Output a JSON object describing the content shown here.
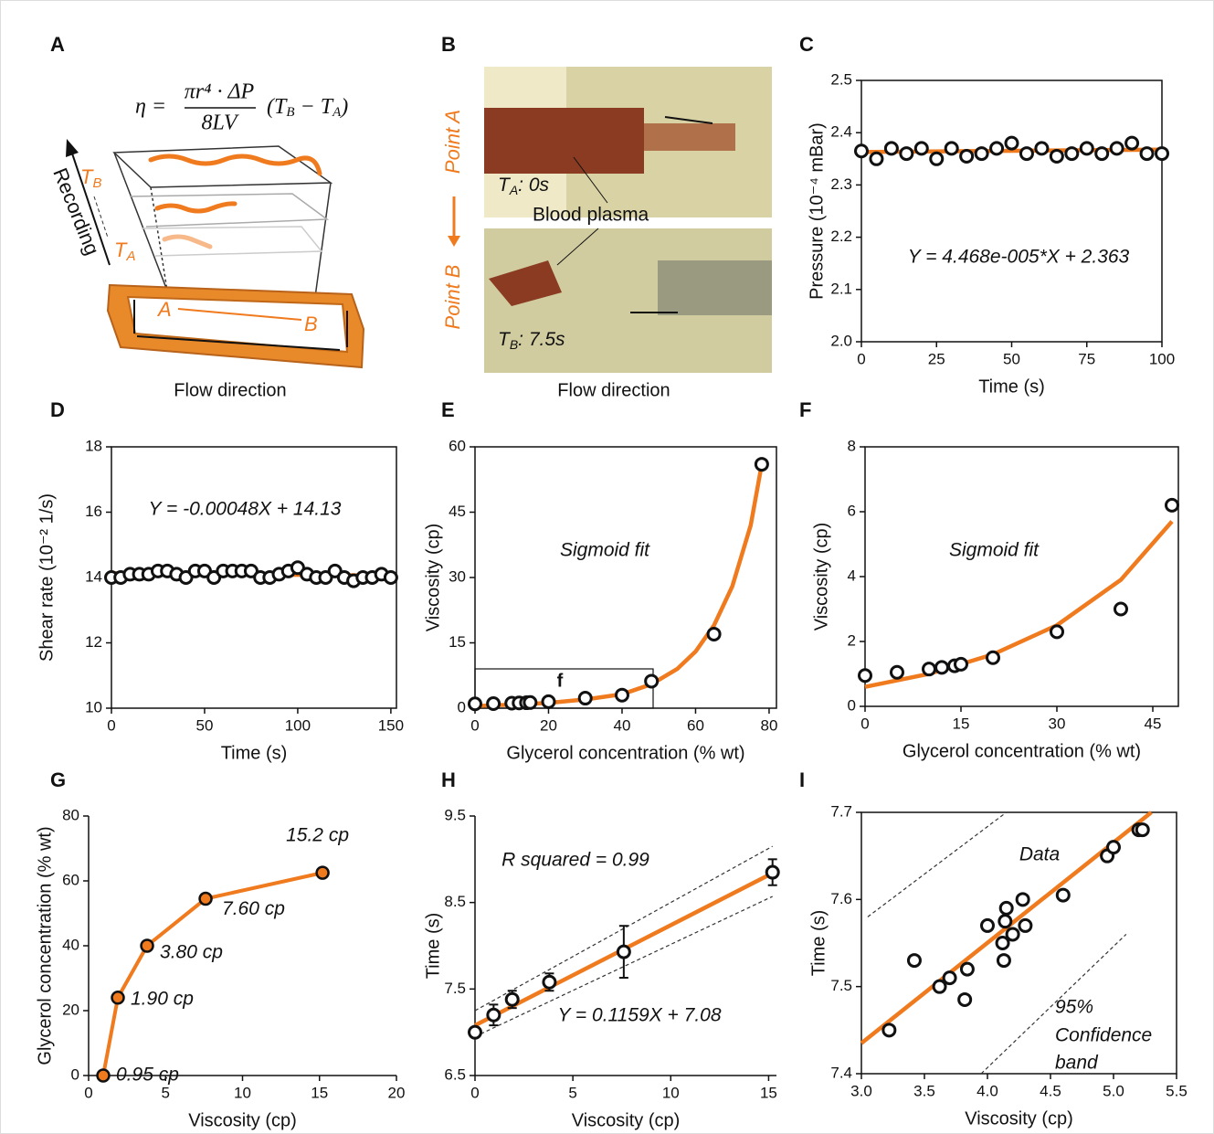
{
  "diagram_a": {
    "label": "A",
    "formula": {
      "lhs": "η =",
      "numerator": "πr⁴ · ΔP",
      "denominator": "8LV",
      "factor": [
        "(T",
        "B",
        " − T",
        "A",
        ")"
      ]
    },
    "recording": "Recording",
    "t_b": [
      "T",
      "B"
    ],
    "t_a": [
      "T",
      "A"
    ],
    "point_a": "A",
    "point_b": "B",
    "caption": "Flow direction"
  },
  "photo_b": {
    "label": "B",
    "point_a": "Point A",
    "point_b": "Point B",
    "t_a": [
      "T",
      "A",
      ": 0s"
    ],
    "plasma": "Blood plasma",
    "t_b": [
      "T",
      "B",
      ": 7.5s"
    ],
    "caption": "Flow direction"
  },
  "chart_data": [
    {
      "type": "scatter",
      "label": "C",
      "xlabel": "Time (s)",
      "ylabel": "Pressure (10⁻⁴ mBar)",
      "box": true,
      "fit_color": "#f07a1e",
      "x": [
        0,
        5,
        10,
        15,
        20,
        25,
        30,
        35,
        40,
        45,
        50,
        55,
        60,
        65,
        70,
        75,
        80,
        85,
        90,
        95,
        100
      ],
      "values": [
        2.365,
        2.35,
        2.37,
        2.36,
        2.37,
        2.35,
        2.37,
        2.355,
        2.36,
        2.37,
        2.38,
        2.36,
        2.37,
        2.355,
        2.36,
        2.37,
        2.36,
        2.37,
        2.38,
        2.36,
        2.36
      ],
      "fit": {
        "x": [
          0,
          100
        ],
        "y": [
          2.363,
          2.3675
        ]
      },
      "xlim": [
        0,
        100
      ],
      "xticks": [
        0,
        25,
        50,
        75,
        100
      ],
      "ylim": [
        2.0,
        2.5
      ],
      "yticks": [
        {
          "value": 2.0,
          "label": "2.0"
        },
        2.1,
        2.2,
        2.3,
        2.4,
        {
          "value": 2.5,
          "label": "2.5"
        }
      ],
      "annotations": [
        "Y = 4.468e-005*X + 2.363"
      ]
    },
    {
      "type": "scatter",
      "label": "D",
      "xlabel": "Time (s)",
      "ylabel": "Shear rate (10⁻² 1/s)",
      "box": true,
      "fit_color": "#f07a1e",
      "x": [
        0,
        5,
        10,
        15,
        20,
        25,
        30,
        35,
        40,
        45,
        50,
        55,
        60,
        65,
        70,
        75,
        80,
        85,
        90,
        95,
        100,
        105,
        110,
        115,
        120,
        125,
        130,
        135,
        140,
        145,
        150
      ],
      "values": [
        14.0,
        14.0,
        14.1,
        14.1,
        14.1,
        14.2,
        14.2,
        14.1,
        14.0,
        14.2,
        14.2,
        14.0,
        14.2,
        14.2,
        14.2,
        14.2,
        14.0,
        14.0,
        14.1,
        14.2,
        14.3,
        14.1,
        14.0,
        14.0,
        14.2,
        14.0,
        13.9,
        14.0,
        14.0,
        14.1,
        14.0
      ],
      "errors": [
        0.1,
        0.15,
        0.15,
        0.15,
        0.15,
        0.15,
        0.15,
        0.1,
        0.15,
        0.15,
        0.15,
        0.15,
        0.1,
        0.15,
        0.1,
        0.15,
        0.15,
        0.15,
        0.15,
        0.15,
        0.1,
        0.1,
        0.1,
        0.15,
        0.15,
        0.1,
        0.1,
        0.15,
        0.1,
        0.1,
        0.1
      ],
      "fit": {
        "x": [
          0,
          150
        ],
        "y": [
          14.13,
          14.058
        ]
      },
      "xlim": [
        0,
        153
      ],
      "xticks": [
        0,
        50,
        100,
        150
      ],
      "ylim": [
        10,
        18
      ],
      "yticks": [
        10,
        12,
        14,
        16,
        18
      ],
      "annotations": [
        "Y = -0.00048X + 14.13"
      ]
    },
    {
      "type": "scatter",
      "label": "E",
      "xlabel": "Glycerol concentration (% wt)",
      "ylabel": "Viscosity (cp)",
      "box": true,
      "fit_color": "#f07a1e",
      "x": [
        0,
        5,
        10,
        12,
        14,
        15,
        20,
        30,
        40,
        48,
        65,
        78
      ],
      "values": [
        1,
        1.05,
        1.15,
        1.2,
        1.25,
        1.3,
        1.5,
        2.3,
        3.0,
        6.2,
        17,
        56
      ],
      "fit": {
        "x": [
          0,
          10,
          20,
          30,
          40,
          48,
          55,
          60,
          65,
          70,
          75,
          78
        ],
        "y": [
          0.5,
          0.8,
          1.2,
          2,
          3.2,
          5.5,
          9,
          13,
          19,
          28,
          42,
          56
        ]
      },
      "xlim": [
        0,
        82
      ],
      "xticks": [
        0,
        20,
        40,
        60,
        80
      ],
      "ylim": [
        0,
        60
      ],
      "yticks": [
        0,
        15,
        30,
        45,
        60
      ],
      "annotations": [
        "Sigmoid fit"
      ],
      "inset_label": "f"
    },
    {
      "type": "scatter",
      "label": "F",
      "xlabel": "Glycerol concentration (% wt)",
      "ylabel": "Viscosity (cp)",
      "box": true,
      "fit_color": "#f07a1e",
      "x": [
        0,
        5,
        10,
        12,
        14,
        15,
        20,
        30,
        40,
        48
      ],
      "values": [
        0.95,
        1.05,
        1.15,
        1.2,
        1.25,
        1.3,
        1.5,
        2.3,
        3.0,
        6.2
      ],
      "fit": {
        "x": [
          0,
          10,
          20,
          30,
          40,
          48
        ],
        "y": [
          0.6,
          1.0,
          1.6,
          2.5,
          3.9,
          5.7
        ]
      },
      "xlim": [
        0,
        49
      ],
      "xticks": [
        0,
        15,
        30,
        45
      ],
      "ylim": [
        0,
        8
      ],
      "yticks": [
        0,
        2,
        4,
        6,
        8
      ],
      "annotations": [
        "Sigmoid fit"
      ]
    },
    {
      "type": "line",
      "label": "G",
      "xlabel": "Viscosity (cp)",
      "ylabel": "Glycerol concentration (% wt)",
      "box": false,
      "color": "#f07a1e",
      "x": [
        0.95,
        1.9,
        3.8,
        7.6,
        15.2
      ],
      "values": [
        0,
        24,
        40,
        54.5,
        62.5
      ],
      "point_labels": [
        "0.95 cp",
        "1.90 cp",
        "3.80 cp",
        "7.60 cp",
        "15.2 cp"
      ],
      "xlim": [
        0,
        20
      ],
      "xticks": [
        0,
        5,
        10,
        15,
        20
      ],
      "ylim": [
        0,
        80
      ],
      "yticks": [
        0,
        20,
        40,
        60,
        80
      ],
      "annotations": []
    },
    {
      "type": "scatter",
      "label": "H",
      "xlabel": "Viscosity (cp)",
      "ylabel": "Time (s)",
      "box": false,
      "fit_color": "#f07a1e",
      "x": [
        0,
        0.95,
        1.9,
        3.8,
        7.6,
        15.2
      ],
      "values": [
        7.0,
        7.2,
        7.38,
        7.58,
        7.93,
        8.85
      ],
      "errors": [
        0,
        0.12,
        0.1,
        0.1,
        0.3,
        0.15
      ],
      "fit": {
        "x": [
          0,
          15.2
        ],
        "y": [
          7.08,
          8.84
        ]
      },
      "bands": [
        {
          "x": [
            0,
            15.2
          ],
          "y": [
            7.25,
            9.15
          ]
        },
        {
          "x": [
            0,
            15.2
          ],
          "y": [
            6.95,
            8.57
          ]
        }
      ],
      "xlim": [
        0,
        15.4
      ],
      "xticks": [
        0,
        5,
        10,
        15
      ],
      "ylim": [
        6.5,
        9.5
      ],
      "yticks": [
        6.5,
        7.5,
        8.5,
        9.5
      ],
      "annotations": [
        "R squared = 0.99",
        "Y = 0.1159X + 7.08"
      ]
    },
    {
      "type": "scatter",
      "label": "I",
      "xlabel": "Viscosity (cp)",
      "ylabel": "Time (s)",
      "box": true,
      "fit_color": "#f07a1e",
      "x": [
        3.22,
        3.42,
        3.62,
        3.7,
        3.82,
        3.84,
        4.0,
        4.12,
        4.13,
        4.14,
        4.15,
        4.2,
        4.28,
        4.3,
        4.6,
        4.95,
        5.0,
        5.2,
        5.23
      ],
      "values": [
        7.45,
        7.53,
        7.5,
        7.51,
        7.485,
        7.52,
        7.57,
        7.55,
        7.53,
        7.575,
        7.59,
        7.56,
        7.6,
        7.57,
        7.605,
        7.65,
        7.66,
        7.68,
        7.68
      ],
      "fit": {
        "x": [
          3.0,
          5.3
        ],
        "y": [
          7.435,
          7.7
        ]
      },
      "bands": [
        {
          "x": [
            3.05,
            4.15
          ],
          "y": [
            7.58,
            7.7
          ]
        },
        {
          "x": [
            3.95,
            5.1
          ],
          "y": [
            7.4,
            7.56
          ]
        }
      ],
      "xlim": [
        3.0,
        5.5
      ],
      "xticks": [
        {
          "value": 3.0,
          "label": "3.0"
        },
        3.5,
        {
          "value": 4.0,
          "label": "4.0"
        },
        4.5,
        {
          "value": 5.0,
          "label": "5.0"
        },
        5.5
      ],
      "ylim": [
        7.4,
        7.7
      ],
      "yticks": [
        7.4,
        7.5,
        7.6,
        7.7
      ],
      "annotations": [
        "Data",
        "95%",
        "Confidence",
        "band"
      ]
    }
  ]
}
